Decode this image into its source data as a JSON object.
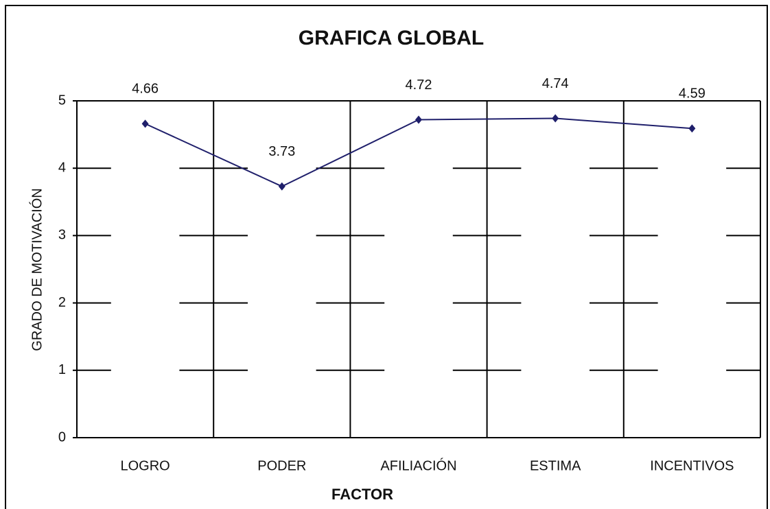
{
  "chart_data": {
    "type": "line",
    "title": "GRAFICA GLOBAL",
    "x_label": "FACTOR",
    "y_label": "GRADO DE MOTIVACIÓN",
    "categories": [
      "LOGRO",
      "PODER",
      "AFILIACIÓN",
      "ESTIMA",
      "INCENTIVOS"
    ],
    "series": [
      {
        "name": "GRADO DE MOTIVACIÓN",
        "color": "#1f1f6b",
        "values": [
          4.66,
          3.73,
          4.72,
          4.74,
          4.59
        ]
      }
    ],
    "ylim": [
      0,
      5
    ],
    "yticks": [
      0,
      1,
      2,
      3,
      4,
      5
    ],
    "grid": true
  }
}
